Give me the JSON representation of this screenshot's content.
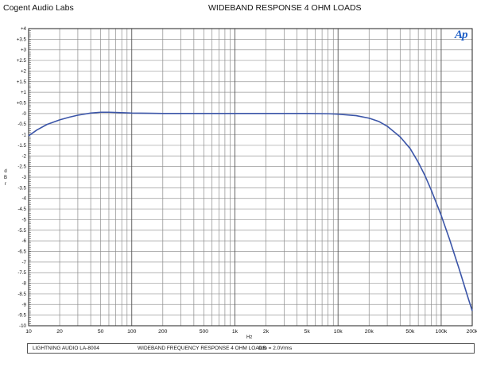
{
  "header": {
    "lab": "Cogent Audio Labs",
    "title": "WIDEBAND RESPONSE  4 OHM LOADS"
  },
  "logo": {
    "text": "Ap"
  },
  "footer": {
    "product": "LIGHTNING AUDIO LA-8004",
    "description": "WIDEBAND FREQUENCY RESPONSE   4 OHM LOADS",
    "reference": "0db = 2.0Vrms"
  },
  "chart_data": {
    "type": "line",
    "title": "WIDEBAND RESPONSE  4 OHM LOADS",
    "xlabel": "Hz",
    "ylabel": "d B r",
    "xscale": "log",
    "xlim": [
      10,
      200000
    ],
    "ylim": [
      -10,
      4
    ],
    "grid": true,
    "line_color": "#3b55a8",
    "x_ticks": [
      {
        "value": 10,
        "label": "10"
      },
      {
        "value": 20,
        "label": "20"
      },
      {
        "value": 50,
        "label": "50"
      },
      {
        "value": 100,
        "label": "100"
      },
      {
        "value": 200,
        "label": "200"
      },
      {
        "value": 500,
        "label": "500"
      },
      {
        "value": 1000,
        "label": "1k"
      },
      {
        "value": 2000,
        "label": "2k"
      },
      {
        "value": 5000,
        "label": "5k"
      },
      {
        "value": 10000,
        "label": "10k"
      },
      {
        "value": 20000,
        "label": "20k"
      },
      {
        "value": 50000,
        "label": "50k"
      },
      {
        "value": 100000,
        "label": "100k"
      },
      {
        "value": 200000,
        "label": "200k"
      }
    ],
    "y_ticks": [
      {
        "value": 4,
        "label": "+4"
      },
      {
        "value": 3.5,
        "label": "+3.5"
      },
      {
        "value": 3,
        "label": "+3"
      },
      {
        "value": 2.5,
        "label": "+2.5"
      },
      {
        "value": 2,
        "label": "+2"
      },
      {
        "value": 1.5,
        "label": "+1.5"
      },
      {
        "value": 1,
        "label": "+1"
      },
      {
        "value": 0.5,
        "label": "+0.5"
      },
      {
        "value": 0,
        "label": "-0"
      },
      {
        "value": -0.5,
        "label": "-0.5"
      },
      {
        "value": -1,
        "label": "-1"
      },
      {
        "value": -1.5,
        "label": "-1.5"
      },
      {
        "value": -2,
        "label": "-2"
      },
      {
        "value": -2.5,
        "label": "-2.5"
      },
      {
        "value": -3,
        "label": "-3"
      },
      {
        "value": -3.5,
        "label": "-3.5"
      },
      {
        "value": -4,
        "label": "-4"
      },
      {
        "value": -4.5,
        "label": "-4.5"
      },
      {
        "value": -5,
        "label": "-5"
      },
      {
        "value": -5.5,
        "label": "-5.5"
      },
      {
        "value": -6,
        "label": "-6"
      },
      {
        "value": -6.5,
        "label": "-6.5"
      },
      {
        "value": -7,
        "label": "-7"
      },
      {
        "value": -7.5,
        "label": "-7.5"
      },
      {
        "value": -8,
        "label": "-8"
      },
      {
        "value": -8.5,
        "label": "-8.5"
      },
      {
        "value": -9,
        "label": "-9"
      },
      {
        "value": -9.5,
        "label": "-9.5"
      },
      {
        "value": -10,
        "label": "-10"
      }
    ],
    "series": [
      {
        "points": [
          [
            10,
            -1.05
          ],
          [
            12,
            -0.78
          ],
          [
            15,
            -0.52
          ],
          [
            20,
            -0.3
          ],
          [
            25,
            -0.17
          ],
          [
            30,
            -0.08
          ],
          [
            40,
            0.02
          ],
          [
            50,
            0.06
          ],
          [
            60,
            0.06
          ],
          [
            80,
            0.04
          ],
          [
            100,
            0.02
          ],
          [
            150,
            0.01
          ],
          [
            200,
            0.0
          ],
          [
            500,
            0.0
          ],
          [
            1000,
            0.0
          ],
          [
            2000,
            0.0
          ],
          [
            5000,
            0.0
          ],
          [
            8000,
            -0.01
          ],
          [
            10000,
            -0.03
          ],
          [
            15000,
            -0.1
          ],
          [
            20000,
            -0.22
          ],
          [
            25000,
            -0.38
          ],
          [
            30000,
            -0.6
          ],
          [
            40000,
            -1.1
          ],
          [
            50000,
            -1.65
          ],
          [
            60000,
            -2.3
          ],
          [
            70000,
            -2.95
          ],
          [
            80000,
            -3.6
          ],
          [
            100000,
            -4.8
          ],
          [
            120000,
            -5.9
          ],
          [
            150000,
            -7.35
          ],
          [
            180000,
            -8.6
          ],
          [
            200000,
            -9.3
          ]
        ]
      }
    ]
  }
}
